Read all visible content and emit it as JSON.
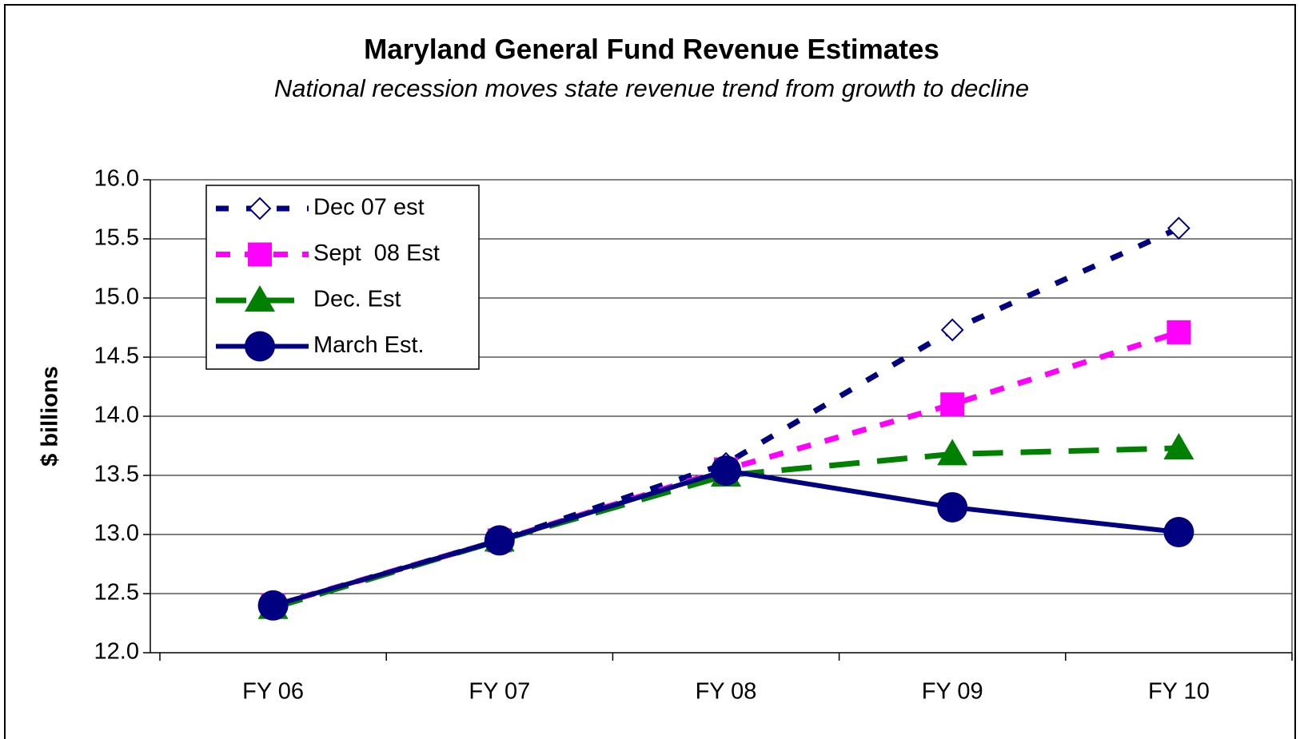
{
  "chart_data": {
    "type": "line",
    "title": "Maryland General Fund Revenue Estimates",
    "subtitle": "National recession moves state revenue trend from growth to decline",
    "y_label": "$ billions",
    "categories": [
      "FY 06",
      "FY 07",
      "FY 08",
      "FY 09",
      "FY 10"
    ],
    "series": [
      {
        "name": "Dec 07 est",
        "color": "#000080",
        "marker": "diamond",
        "line_style": "dotted",
        "values": [
          12.4,
          12.95,
          13.6,
          14.73,
          15.59
        ]
      },
      {
        "name": "Sept  08 Est",
        "color": "#ff00ff",
        "marker": "square",
        "line_style": "dashed",
        "values": [
          12.4,
          12.95,
          13.55,
          14.1,
          14.71
        ]
      },
      {
        "name": "Dec. Est",
        "color": "#008000",
        "marker": "triangle",
        "line_style": "long-dashed",
        "values": [
          12.38,
          12.95,
          13.5,
          13.68,
          13.73
        ]
      },
      {
        "name": "March Est.",
        "color": "#000080",
        "marker": "circle",
        "line_style": "solid",
        "values": [
          12.4,
          12.95,
          13.54,
          13.23,
          13.02
        ]
      }
    ],
    "ylim": [
      12,
      16
    ],
    "yticks": [
      {
        "value": 12,
        "label": "12.0"
      },
      {
        "value": 12.5,
        "label": "12.5"
      },
      {
        "value": 13,
        "label": "13.0"
      },
      {
        "value": 13.5,
        "label": "13.5"
      },
      {
        "value": 14,
        "label": "14.0"
      },
      {
        "value": 14.5,
        "label": "14.5"
      },
      {
        "value": 15,
        "label": "15.0"
      },
      {
        "value": 15.5,
        "label": "15.5"
      },
      {
        "value": 16,
        "label": "16.0"
      }
    ],
    "grid": true,
    "legend": "upper-left"
  }
}
